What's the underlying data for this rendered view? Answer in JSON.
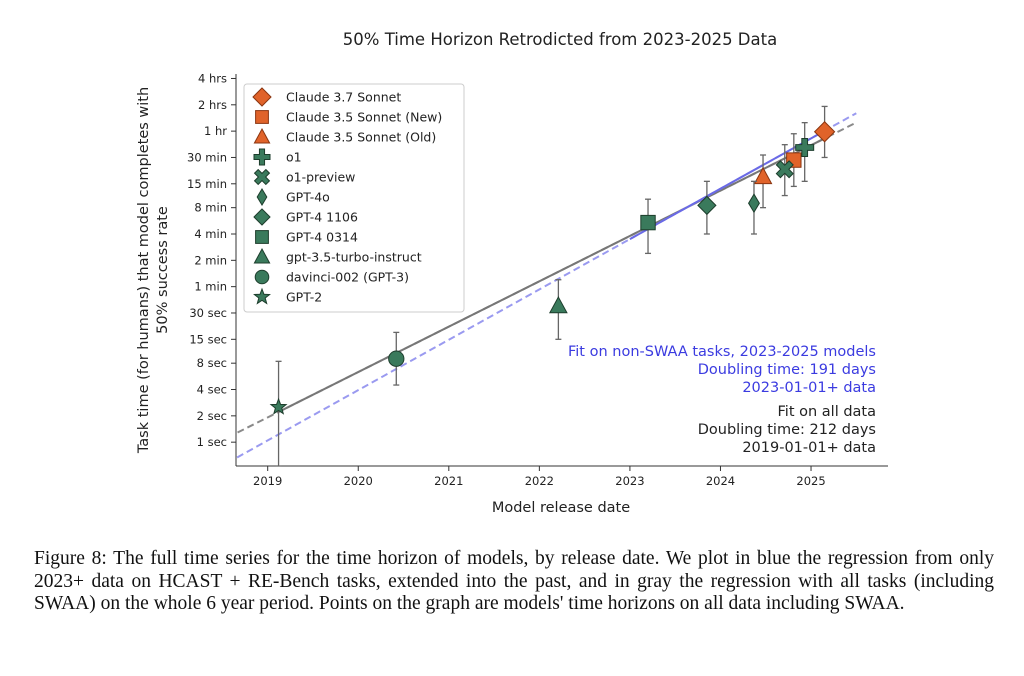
{
  "chart_data": {
    "type": "scatter",
    "title": "50% Time Horizon Retrodicted from 2023-2025 Data",
    "xlabel": "Model release date",
    "ylabel_line1": "Task time (for humans) that model completes with",
    "ylabel_line2": "50% success rate",
    "y_scale": "log",
    "y_unit": "minutes",
    "xlim": [
      2018.65,
      2025.85
    ],
    "ylim_minutes": [
      0.0089,
      270
    ],
    "x_ticks": [
      {
        "value": 2019,
        "label": "2019"
      },
      {
        "value": 2020,
        "label": "2020"
      },
      {
        "value": 2021,
        "label": "2021"
      },
      {
        "value": 2022,
        "label": "2022"
      },
      {
        "value": 2023,
        "label": "2023"
      },
      {
        "value": 2024,
        "label": "2024"
      },
      {
        "value": 2025,
        "label": "2025"
      }
    ],
    "y_ticks": [
      {
        "minutes": 0.016667,
        "label": "1 sec"
      },
      {
        "minutes": 0.033333,
        "label": "2 sec"
      },
      {
        "minutes": 0.066667,
        "label": "4 sec"
      },
      {
        "minutes": 0.133333,
        "label": "8 sec"
      },
      {
        "minutes": 0.25,
        "label": "15 sec"
      },
      {
        "minutes": 0.5,
        "label": "30 sec"
      },
      {
        "minutes": 1,
        "label": "1 min"
      },
      {
        "minutes": 2,
        "label": "2 min"
      },
      {
        "minutes": 4,
        "label": "4 min"
      },
      {
        "minutes": 8,
        "label": "8 min"
      },
      {
        "minutes": 15,
        "label": "15 min"
      },
      {
        "minutes": 30,
        "label": "30 min"
      },
      {
        "minutes": 60,
        "label": "1 hr"
      },
      {
        "minutes": 120,
        "label": "2 hrs"
      },
      {
        "minutes": 240,
        "label": "4 hrs"
      }
    ],
    "grid": false,
    "legend_position": "top-left",
    "series": [
      {
        "name": "Claude 3.7 Sonnet",
        "marker": "diamond",
        "color": "#e0632a",
        "big": true,
        "x": 2025.15,
        "y": 59,
        "err": [
          30,
          115
        ]
      },
      {
        "name": "Claude 3.5 Sonnet (New)",
        "marker": "square",
        "color": "#e0632a",
        "x": 2024.81,
        "y": 28,
        "err": [
          14,
          56
        ]
      },
      {
        "name": "Claude 3.5 Sonnet (Old)",
        "marker": "triangle",
        "color": "#e0632a",
        "x": 2024.47,
        "y": 18,
        "err": [
          8,
          32
        ]
      },
      {
        "name": "o1",
        "marker": "plus",
        "color": "#3a7a5c",
        "x": 2024.93,
        "y": 39,
        "err": [
          16,
          75
        ]
      },
      {
        "name": "o1-preview",
        "marker": "x",
        "color": "#3a7a5c",
        "x": 2024.71,
        "y": 22,
        "err": [
          11,
          42
        ]
      },
      {
        "name": "GPT-4o",
        "marker": "thin-diamond",
        "color": "#3a7a5c",
        "x": 2024.37,
        "y": 9,
        "err": [
          4,
          16
        ]
      },
      {
        "name": "GPT-4 1106",
        "marker": "diamond",
        "color": "#3a7a5c",
        "x": 2023.85,
        "y": 8.5,
        "err": [
          4,
          16
        ]
      },
      {
        "name": "GPT-4 0314",
        "marker": "square",
        "color": "#3a7a5c",
        "x": 2023.2,
        "y": 5.4,
        "err": [
          2.4,
          10
        ]
      },
      {
        "name": "gpt-3.5-turbo-instruct",
        "marker": "triangle",
        "color": "#3a7a5c",
        "x": 2022.21,
        "y": 0.6,
        "err": [
          0.25,
          1.2
        ]
      },
      {
        "name": "davinci-002 (GPT-3)",
        "marker": "circle",
        "color": "#3a7a5c",
        "x": 2020.42,
        "y": 0.15,
        "err": [
          0.075,
          0.3
        ]
      },
      {
        "name": "GPT-2",
        "marker": "star",
        "color": "#3a7a5c",
        "x": 2019.12,
        "y": 0.042,
        "err": [
          0.0089,
          0.14
        ]
      }
    ],
    "fits": [
      {
        "kind": "gray",
        "color": "#777777",
        "solid_from": 2019.12,
        "solid_to": 2025.15,
        "x0": 2019.0,
        "y0": 0.032,
        "doubling_days": 212,
        "dashed_to": 2025.5
      },
      {
        "kind": "blue",
        "color": "#6a6ae6",
        "solid_from": 2023.0,
        "solid_to": 2025.15,
        "x0": 2023.0,
        "y0": 3.5,
        "doubling_days": 191,
        "dashed_to": 2025.5
      }
    ],
    "annotations": {
      "blue_lines": [
        "Fit on non-SWAA tasks, 2023-2025 models",
        "Doubling time: 191 days",
        "2023-01-01+ data"
      ],
      "gray_lines": [
        "Fit on all data",
        "Doubling time: 212 days",
        "2019-01-01+ data"
      ],
      "blue_color": "#3b3be0",
      "gray_color": "#222222"
    }
  },
  "caption": {
    "text": "Figure 8: The full time series for the time horizon of models, by release date. We plot in blue the regression from only 2023+ data on HCAST + RE-Bench tasks, extended into the past, and in gray the regression with all tasks (including SWAA) on the whole 6 year period. Points on the graph are models' time horizons on all data including SWAA."
  }
}
